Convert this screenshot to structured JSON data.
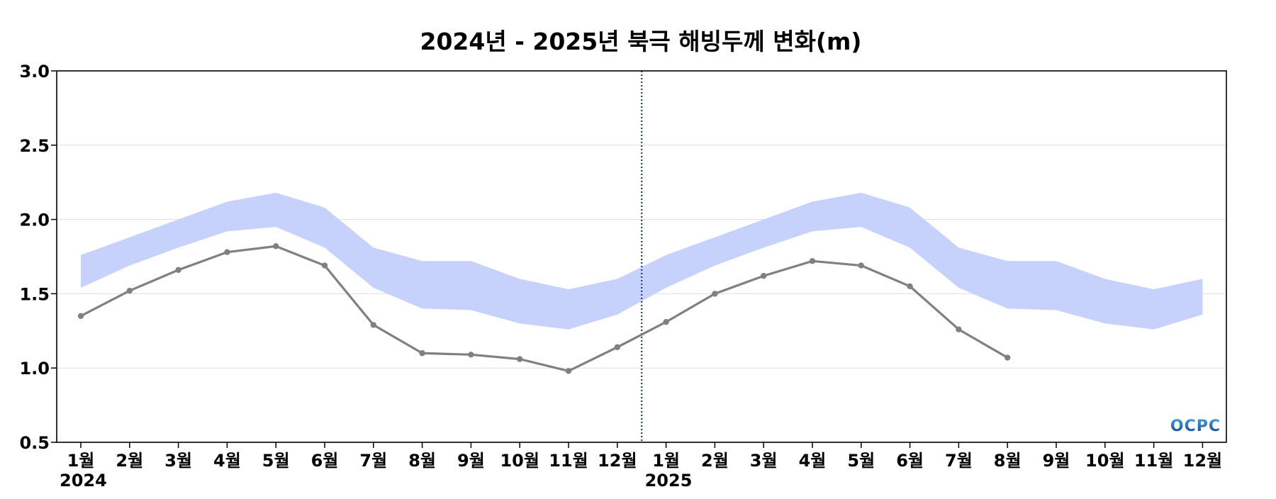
{
  "chart_data": {
    "type": "line",
    "title": "2024년 - 2025년 북극 해빙두께 변화(m)",
    "xlabel": "",
    "ylabel": "",
    "ylim": [
      0.5,
      3.0
    ],
    "y_ticks": [
      "3.0",
      "2.5",
      "2.0",
      "1.5",
      "1.0",
      "0.5"
    ],
    "y_tick_values": [
      3.0,
      2.5,
      2.0,
      1.5,
      1.0,
      0.5
    ],
    "categories": [
      "1월",
      "2월",
      "3월",
      "4월",
      "5월",
      "6월",
      "7월",
      "8월",
      "9월",
      "10월",
      "11월",
      "12월",
      "1월",
      "2월",
      "3월",
      "4월",
      "5월",
      "6월",
      "7월",
      "8월",
      "9월",
      "10월",
      "11월",
      "12월"
    ],
    "year_labels": [
      {
        "label": "2024",
        "index": 0
      },
      {
        "label": "2025",
        "index": 12
      }
    ],
    "grid": true,
    "divider_between_index": [
      11,
      12
    ],
    "band": {
      "upper": [
        1.76,
        1.88,
        2.0,
        2.12,
        2.18,
        2.08,
        1.81,
        1.72,
        1.72,
        1.6,
        1.53,
        1.6,
        1.76,
        1.88,
        2.0,
        2.12,
        2.18,
        2.08,
        1.81,
        1.72,
        1.72,
        1.6,
        1.53,
        1.6
      ],
      "lower": [
        1.54,
        1.69,
        1.81,
        1.92,
        1.95,
        1.81,
        1.54,
        1.4,
        1.39,
        1.3,
        1.26,
        1.36,
        1.54,
        1.69,
        1.81,
        1.92,
        1.95,
        1.81,
        1.54,
        1.4,
        1.39,
        1.3,
        1.26,
        1.36
      ]
    },
    "series": [
      {
        "values": [
          1.35,
          1.52,
          1.66,
          1.78,
          1.82,
          1.69,
          1.29,
          1.1,
          1.09,
          1.06,
          0.98,
          1.14,
          1.31,
          1.5,
          1.62,
          1.72,
          1.69,
          1.55,
          1.26,
          1.07,
          null,
          null,
          null,
          null
        ]
      }
    ],
    "colors": {
      "band": "#c6d2fb",
      "line": "#808080",
      "divider": "#1f3b7a",
      "grid": "#dddddd",
      "axis": "#000000"
    }
  },
  "logo": {
    "text": "OCPC",
    "color_top": "#3fa3d9",
    "color_bottom": "#1b3f8f"
  }
}
